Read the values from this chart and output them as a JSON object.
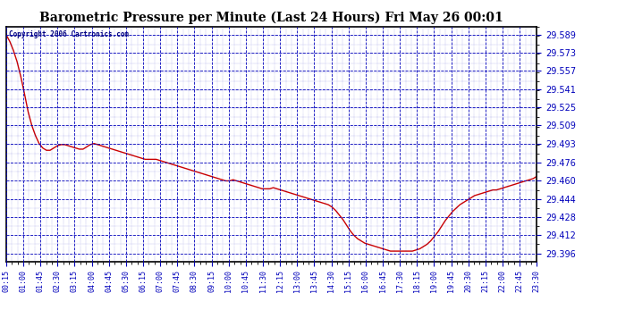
{
  "title": "Barometric Pressure per Minute (Last 24 Hours) Fri May 26 00:01",
  "copyright": "Copyright 2006 Cartronics.com",
  "background_color": "#ffffff",
  "plot_bg_color": "#ffffff",
  "grid_color": "#0000bb",
  "line_color": "#cc0000",
  "ylabel_color": "#0000bb",
  "xlabel_color": "#0000bb",
  "title_color": "#000000",
  "ylim": [
    29.389,
    29.596
  ],
  "yticks": [
    29.396,
    29.412,
    29.428,
    29.444,
    29.46,
    29.476,
    29.493,
    29.509,
    29.525,
    29.541,
    29.557,
    29.573,
    29.589
  ],
  "xtick_labels": [
    "00:15",
    "01:00",
    "01:45",
    "02:30",
    "03:15",
    "04:00",
    "04:45",
    "05:30",
    "06:15",
    "07:00",
    "07:45",
    "08:30",
    "09:15",
    "10:00",
    "10:45",
    "11:30",
    "12:15",
    "13:00",
    "13:45",
    "14:30",
    "15:15",
    "16:00",
    "16:45",
    "17:30",
    "18:15",
    "19:00",
    "19:45",
    "20:30",
    "21:15",
    "22:00",
    "22:45",
    "23:30"
  ],
  "pressure_data": [
    29.589,
    29.583,
    29.575,
    29.565,
    29.552,
    29.537,
    29.521,
    29.509,
    29.5,
    29.493,
    29.489,
    29.487,
    29.487,
    29.489,
    29.491,
    29.492,
    29.492,
    29.491,
    29.49,
    29.489,
    29.488,
    29.488,
    29.49,
    29.492,
    29.493,
    29.492,
    29.491,
    29.49,
    29.489,
    29.488,
    29.487,
    29.486,
    29.485,
    29.484,
    29.483,
    29.482,
    29.481,
    29.48,
    29.479,
    29.479,
    29.479,
    29.479,
    29.478,
    29.477,
    29.476,
    29.475,
    29.474,
    29.473,
    29.472,
    29.471,
    29.47,
    29.469,
    29.468,
    29.467,
    29.466,
    29.465,
    29.464,
    29.463,
    29.462,
    29.461,
    29.46,
    29.46,
    29.461,
    29.46,
    29.459,
    29.458,
    29.457,
    29.456,
    29.455,
    29.454,
    29.453,
    29.453,
    29.453,
    29.454,
    29.453,
    29.452,
    29.451,
    29.45,
    29.449,
    29.448,
    29.447,
    29.446,
    29.445,
    29.444,
    29.443,
    29.442,
    29.441,
    29.44,
    29.439,
    29.437,
    29.434,
    29.43,
    29.426,
    29.421,
    29.416,
    29.412,
    29.409,
    29.407,
    29.405,
    29.404,
    29.403,
    29.402,
    29.401,
    29.4,
    29.399,
    29.398,
    29.398,
    29.398,
    29.398,
    29.398,
    29.398,
    29.398,
    29.399,
    29.4,
    29.402,
    29.404,
    29.407,
    29.411,
    29.415,
    29.42,
    29.425,
    29.429,
    29.433,
    29.436,
    29.439,
    29.441,
    29.443,
    29.445,
    29.447,
    29.448,
    29.449,
    29.45,
    29.451,
    29.452,
    29.452,
    29.453,
    29.454,
    29.455,
    29.456,
    29.457,
    29.458,
    29.459,
    29.46,
    29.461,
    29.462,
    29.464
  ]
}
